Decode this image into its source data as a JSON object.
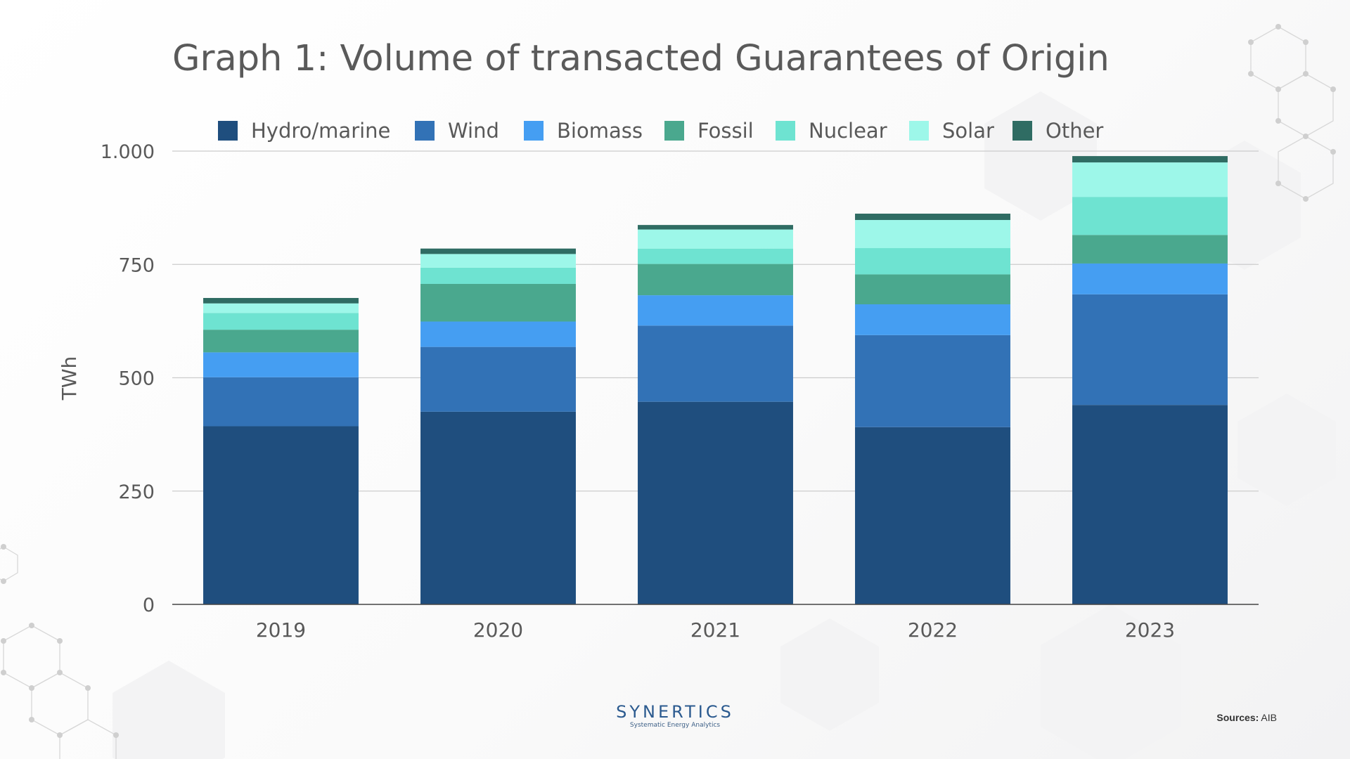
{
  "title": "Graph 1: Volume of transacted Guarantees of Origin",
  "brand": {
    "name": "SYNERTICS",
    "tagline": "Systematic Energy Analytics"
  },
  "sources": {
    "label": "Sources:",
    "value": "AIB"
  },
  "chart_data": {
    "type": "bar",
    "stacked": true,
    "title": "Graph 1: Volume of transacted Guarantees of Origin",
    "xlabel": "",
    "ylabel": "TWh",
    "ylim": [
      0,
      1000
    ],
    "yticks": [
      0,
      250,
      500,
      750,
      1000
    ],
    "ytick_labels": [
      "0",
      "250",
      "500",
      "750",
      "1.000"
    ],
    "grid": true,
    "legend_position": "top",
    "categories": [
      "2019",
      "2020",
      "2021",
      "2022",
      "2023"
    ],
    "series": [
      {
        "name": "Hydro/marine",
        "color": "#1f4e7e",
        "values": [
          393,
          425,
          447,
          391,
          440
        ]
      },
      {
        "name": "Wind",
        "color": "#3272b6",
        "values": [
          108,
          143,
          168,
          203,
          244
        ]
      },
      {
        "name": "Biomass",
        "color": "#459ef2",
        "values": [
          55,
          56,
          67,
          68,
          68
        ]
      },
      {
        "name": "Fossil",
        "color": "#4aa88e",
        "values": [
          50,
          83,
          69,
          66,
          63
        ]
      },
      {
        "name": "Nuclear",
        "color": "#6ee3d1",
        "values": [
          37,
          36,
          34,
          58,
          84
        ]
      },
      {
        "name": "Solar",
        "color": "#9df7e9",
        "values": [
          21,
          30,
          42,
          62,
          76
        ]
      },
      {
        "name": "Other",
        "color": "#2f6c63",
        "values": [
          12,
          12,
          10,
          14,
          14
        ]
      }
    ]
  }
}
